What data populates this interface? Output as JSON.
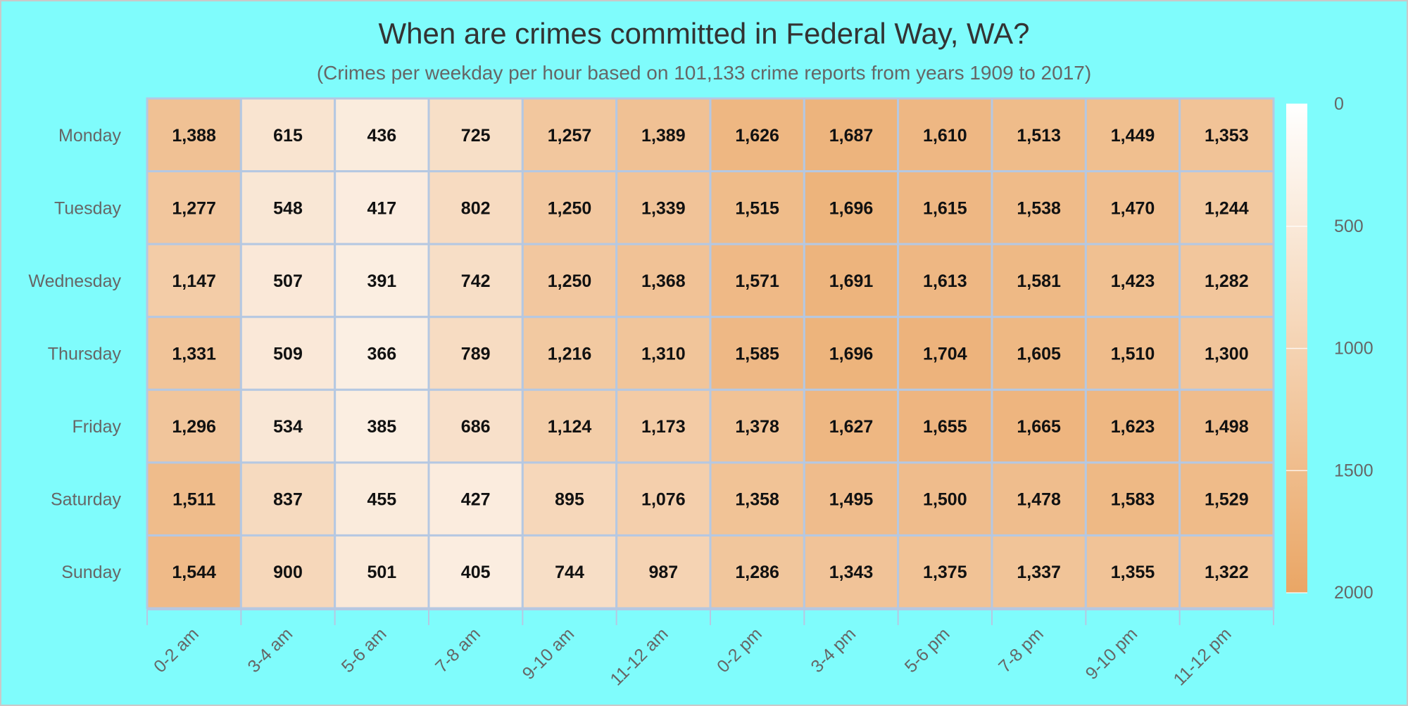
{
  "title": "When are crimes committed in Federal Way, WA?",
  "subtitle": "(Crimes per weekday per hour based on 101,133 crime reports from years 1909 to 2017)",
  "colors": {
    "background": "#7ffcfc",
    "low": "#ffffff",
    "high": "#eaa665",
    "grid": "#b5c8e2",
    "cell_text": "#111111",
    "axis_text": "#666666"
  },
  "chart_data": {
    "type": "heatmap",
    "title": "When are crimes committed in Federal Way, WA?",
    "subtitle": "(Crimes per weekday per hour based on 101,133 crime reports from years 1909 to 2017)",
    "x_categories": [
      "0-2 am",
      "3-4 am",
      "5-6 am",
      "7-8 am",
      "9-10 am",
      "11-12 am",
      "0-2 pm",
      "3-4 pm",
      "5-6 pm",
      "7-8 pm",
      "9-10 pm",
      "11-12 pm"
    ],
    "y_categories": [
      "Monday",
      "Tuesday",
      "Wednesday",
      "Thursday",
      "Friday",
      "Saturday",
      "Sunday"
    ],
    "values": [
      [
        1388,
        615,
        436,
        725,
        1257,
        1389,
        1626,
        1687,
        1610,
        1513,
        1449,
        1353
      ],
      [
        1277,
        548,
        417,
        802,
        1250,
        1339,
        1515,
        1696,
        1615,
        1538,
        1470,
        1244
      ],
      [
        1147,
        507,
        391,
        742,
        1250,
        1368,
        1571,
        1691,
        1613,
        1581,
        1423,
        1282
      ],
      [
        1331,
        509,
        366,
        789,
        1216,
        1310,
        1585,
        1696,
        1704,
        1605,
        1510,
        1300
      ],
      [
        1296,
        534,
        385,
        686,
        1124,
        1173,
        1378,
        1627,
        1655,
        1665,
        1623,
        1498
      ],
      [
        1511,
        837,
        455,
        427,
        895,
        1076,
        1358,
        1495,
        1500,
        1478,
        1583,
        1529
      ],
      [
        1544,
        900,
        501,
        405,
        744,
        987,
        1286,
        1343,
        1375,
        1337,
        1355,
        1322
      ]
    ],
    "colorbar": {
      "min": 0,
      "max": 2000,
      "ticks": [
        0,
        500,
        1000,
        1500,
        2000
      ],
      "tick_labels": [
        "0",
        "500",
        "1000",
        "1500",
        "2000"
      ]
    },
    "legend_position": "right"
  }
}
